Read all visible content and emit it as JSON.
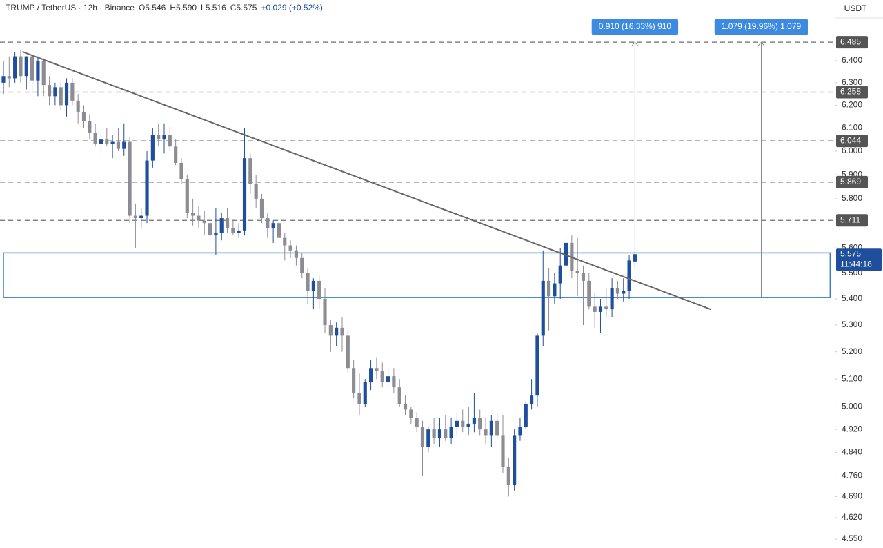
{
  "chart_data": {
    "type": "candlestick",
    "symbol": "TRUMP / TetherUS · 12h · Binance",
    "ohlc_labels": [
      "O5.546",
      "H5.590",
      "L5.516",
      "C5.575"
    ],
    "change": "+0.029 (+0.52%)",
    "currency": "USDT",
    "log_scale": true,
    "up_color": "#1f4e9c",
    "down_color": "#8c8c94",
    "xlim": [
      -0.6,
      144.8
    ],
    "ylim": [
      4.532,
      6.683
    ],
    "yticks": [
      {
        "value": 6.4,
        "label": "6.400"
      },
      {
        "value": 6.3,
        "label": "6.300"
      },
      {
        "value": 6.2,
        "label": "6.200"
      },
      {
        "value": 6.1,
        "label": "6.100"
      },
      {
        "value": 6.0,
        "label": "6.000"
      },
      {
        "value": 5.9,
        "label": "5.900"
      },
      {
        "value": 5.8,
        "label": "5.800"
      },
      {
        "value": 5.6,
        "label": "5.600"
      },
      {
        "value": 5.5,
        "label": "5.500"
      },
      {
        "value": 5.4,
        "label": "5.400"
      },
      {
        "value": 5.3,
        "label": "5.300"
      },
      {
        "value": 5.2,
        "label": "5.200"
      },
      {
        "value": 5.1,
        "label": "5.100"
      },
      {
        "value": 5.0,
        "label": "5.000"
      },
      {
        "value": 4.92,
        "label": "4.920"
      },
      {
        "value": 4.84,
        "label": "4.840"
      },
      {
        "value": 4.76,
        "label": "4.760"
      },
      {
        "value": 4.69,
        "label": "4.690"
      },
      {
        "value": 4.62,
        "label": "4.620"
      },
      {
        "value": 4.55,
        "label": "4.550"
      }
    ],
    "candles": [
      [
        6.3,
        6.4,
        6.25,
        6.33
      ],
      [
        6.33,
        6.42,
        6.28,
        6.32
      ],
      [
        6.32,
        6.44,
        6.3,
        6.42
      ],
      [
        6.42,
        6.45,
        6.3,
        6.33
      ],
      [
        6.33,
        6.42,
        6.27,
        6.42
      ],
      [
        6.42,
        6.43,
        6.25,
        6.31
      ],
      [
        6.31,
        6.42,
        6.24,
        6.4
      ],
      [
        6.4,
        6.41,
        6.24,
        6.29
      ],
      [
        6.29,
        6.33,
        6.2,
        6.24
      ],
      [
        6.24,
        6.3,
        6.2,
        6.28
      ],
      [
        6.28,
        6.3,
        6.18,
        6.2
      ],
      [
        6.2,
        6.32,
        6.15,
        6.3
      ],
      [
        6.3,
        6.32,
        6.2,
        6.22
      ],
      [
        6.22,
        6.25,
        6.12,
        6.17
      ],
      [
        6.17,
        6.2,
        6.1,
        6.13
      ],
      [
        6.13,
        6.16,
        6.05,
        6.08
      ],
      [
        6.08,
        6.12,
        6.02,
        6.03
      ],
      [
        6.03,
        6.08,
        5.98,
        6.05
      ],
      [
        6.05,
        6.1,
        6.02,
        6.03
      ],
      [
        6.03,
        6.07,
        5.97,
        6.04
      ],
      [
        6.04,
        6.1,
        6.0,
        6.01
      ],
      [
        6.01,
        6.12,
        5.98,
        6.04
      ],
      [
        6.04,
        6.06,
        5.7,
        5.73
      ],
      [
        5.73,
        5.78,
        5.6,
        5.72
      ],
      [
        5.72,
        5.76,
        5.68,
        5.73
      ],
      [
        5.73,
        6.0,
        5.7,
        5.96
      ],
      [
        5.96,
        6.1,
        5.93,
        6.07
      ],
      [
        6.07,
        6.12,
        6.02,
        6.05
      ],
      [
        6.05,
        6.12,
        5.99,
        6.07
      ],
      [
        6.07,
        6.11,
        6.0,
        6.02
      ],
      [
        6.02,
        6.05,
        5.94,
        5.95
      ],
      [
        5.95,
        5.97,
        5.86,
        5.88
      ],
      [
        5.88,
        5.9,
        5.72,
        5.74
      ],
      [
        5.74,
        5.8,
        5.69,
        5.73
      ],
      [
        5.73,
        5.77,
        5.68,
        5.71
      ],
      [
        5.71,
        5.75,
        5.65,
        5.7
      ],
      [
        5.7,
        5.72,
        5.62,
        5.65
      ],
      [
        5.65,
        5.76,
        5.57,
        5.66
      ],
      [
        5.66,
        5.74,
        5.63,
        5.72
      ],
      [
        5.72,
        5.76,
        5.66,
        5.68
      ],
      [
        5.68,
        5.71,
        5.65,
        5.66
      ],
      [
        5.66,
        5.7,
        5.64,
        5.67
      ],
      [
        5.67,
        6.1,
        5.65,
        5.97
      ],
      [
        5.97,
        5.99,
        5.82,
        5.86
      ],
      [
        5.86,
        5.9,
        5.76,
        5.8
      ],
      [
        5.8,
        5.82,
        5.7,
        5.72
      ],
      [
        5.72,
        5.74,
        5.64,
        5.68
      ],
      [
        5.68,
        5.71,
        5.62,
        5.7
      ],
      [
        5.7,
        5.72,
        5.62,
        5.64
      ],
      [
        5.64,
        5.66,
        5.55,
        5.61
      ],
      [
        5.61,
        5.63,
        5.56,
        5.59
      ],
      [
        5.59,
        5.61,
        5.53,
        5.56
      ],
      [
        5.56,
        5.58,
        5.48,
        5.5
      ],
      [
        5.5,
        5.52,
        5.38,
        5.43
      ],
      [
        5.43,
        5.48,
        5.36,
        5.47
      ],
      [
        5.47,
        5.49,
        5.36,
        5.4
      ],
      [
        5.4,
        5.44,
        5.27,
        5.3
      ],
      [
        5.3,
        5.32,
        5.2,
        5.26
      ],
      [
        5.26,
        5.31,
        5.22,
        5.29
      ],
      [
        5.29,
        5.33,
        5.2,
        5.26
      ],
      [
        5.26,
        5.28,
        5.12,
        5.14
      ],
      [
        5.14,
        5.17,
        5.03,
        5.05
      ],
      [
        5.05,
        5.12,
        4.97,
        5.01
      ],
      [
        5.01,
        5.1,
        5.0,
        5.09
      ],
      [
        5.09,
        5.17,
        5.06,
        5.14
      ],
      [
        5.14,
        5.18,
        5.1,
        5.13
      ],
      [
        5.13,
        5.16,
        5.07,
        5.09
      ],
      [
        5.09,
        5.14,
        5.07,
        5.11
      ],
      [
        5.11,
        5.14,
        5.05,
        5.07
      ],
      [
        5.07,
        5.1,
        5.0,
        5.01
      ],
      [
        5.01,
        5.04,
        4.97,
        4.99
      ],
      [
        4.99,
        5.0,
        4.94,
        4.96
      ],
      [
        4.96,
        4.98,
        4.91,
        4.93
      ],
      [
        4.93,
        4.95,
        4.76,
        4.86
      ],
      [
        4.86,
        4.93,
        4.84,
        4.92
      ],
      [
        4.92,
        4.96,
        4.87,
        4.89
      ],
      [
        4.89,
        4.96,
        4.86,
        4.92
      ],
      [
        4.92,
        4.97,
        4.88,
        4.89
      ],
      [
        4.89,
        4.96,
        4.87,
        4.93
      ],
      [
        4.93,
        4.98,
        4.9,
        4.95
      ],
      [
        4.95,
        4.99,
        4.91,
        4.93
      ],
      [
        4.93,
        5.0,
        4.9,
        4.94
      ],
      [
        4.94,
        5.05,
        4.91,
        4.96
      ],
      [
        4.96,
        4.99,
        4.9,
        4.92
      ],
      [
        4.92,
        4.96,
        4.87,
        4.9
      ],
      [
        4.9,
        4.97,
        4.86,
        4.95
      ],
      [
        4.95,
        4.98,
        4.89,
        4.9
      ],
      [
        4.9,
        4.97,
        4.77,
        4.79
      ],
      [
        4.79,
        4.82,
        4.69,
        4.73
      ],
      [
        4.73,
        4.92,
        4.71,
        4.9
      ],
      [
        4.9,
        4.96,
        4.88,
        4.93
      ],
      [
        4.93,
        5.02,
        4.92,
        5.01
      ],
      [
        5.01,
        5.1,
        4.99,
        5.04
      ],
      [
        5.04,
        5.27,
        5.0,
        5.26
      ],
      [
        5.26,
        5.59,
        5.22,
        5.47
      ],
      [
        5.47,
        5.52,
        5.28,
        5.41
      ],
      [
        5.41,
        5.5,
        5.38,
        5.46
      ],
      [
        5.46,
        5.6,
        5.4,
        5.53
      ],
      [
        5.53,
        5.64,
        5.47,
        5.62
      ],
      [
        5.62,
        5.65,
        5.48,
        5.51
      ],
      [
        5.51,
        5.64,
        5.41,
        5.5
      ],
      [
        5.5,
        5.53,
        5.3,
        5.47
      ],
      [
        5.47,
        5.5,
        5.36,
        5.37
      ],
      [
        5.37,
        5.42,
        5.29,
        5.35
      ],
      [
        5.35,
        5.4,
        5.27,
        5.37
      ],
      [
        5.37,
        5.44,
        5.33,
        5.36
      ],
      [
        5.36,
        5.48,
        5.33,
        5.44
      ],
      [
        5.44,
        5.47,
        5.4,
        5.42
      ],
      [
        5.42,
        5.48,
        5.39,
        5.43
      ],
      [
        5.43,
        5.57,
        5.4,
        5.55
      ],
      [
        5.546,
        5.59,
        5.516,
        5.575
      ]
    ],
    "levels": [
      6.485,
      6.258,
      6.044,
      5.869,
      5.711
    ],
    "last_price": 5.575,
    "countdown": "11:44:18",
    "zone": {
      "low": 5.405,
      "high": 5.58,
      "x": [
        0,
        144
      ]
    },
    "trendline": {
      "x": [
        3.3,
        123.2
      ],
      "y": [
        6.441,
        5.36
      ]
    },
    "measures": [
      {
        "x": 110,
        "from": 5.575,
        "to": 6.485,
        "label": "0.910 (16.33%) 910"
      },
      {
        "x": 132,
        "from": 5.405,
        "to": 6.485,
        "label": "1.079 (19.96%) 1,079"
      }
    ]
  }
}
